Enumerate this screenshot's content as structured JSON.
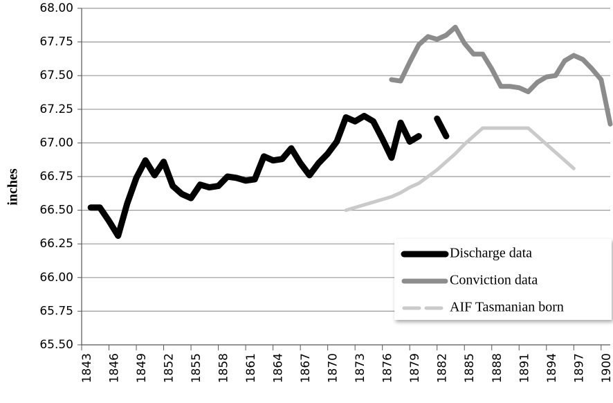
{
  "chart_data": {
    "type": "line",
    "y_label": "inches",
    "x": [
      1843,
      1844,
      1845,
      1846,
      1847,
      1848,
      1849,
      1850,
      1851,
      1852,
      1853,
      1854,
      1855,
      1856,
      1857,
      1858,
      1859,
      1860,
      1861,
      1862,
      1863,
      1864,
      1865,
      1866,
      1867,
      1868,
      1869,
      1870,
      1871,
      1872,
      1873,
      1874,
      1875,
      1876,
      1877,
      1878,
      1879,
      1880,
      1881,
      1882,
      1883,
      1884,
      1885,
      1886,
      1887,
      1888,
      1889,
      1890,
      1891,
      1892,
      1893,
      1894,
      1895,
      1896,
      1897,
      1898,
      1899,
      1900,
      1901
    ],
    "series": [
      {
        "name": "Discharge data",
        "color": "#000000",
        "values": [
          null,
          66.52,
          66.52,
          66.42,
          66.31,
          66.55,
          66.74,
          66.87,
          66.76,
          66.86,
          66.68,
          66.62,
          66.59,
          66.69,
          66.67,
          66.68,
          66.75,
          66.74,
          66.72,
          66.73,
          66.9,
          66.87,
          66.88,
          66.96,
          66.85,
          66.76,
          66.85,
          66.92,
          67.01,
          67.19,
          67.16,
          67.2,
          67.16,
          67.03,
          66.89,
          67.15,
          67.01,
          67.05,
          null,
          67.18,
          67.05,
          null,
          null,
          null,
          null,
          null,
          null,
          null,
          null,
          null,
          null,
          null,
          null,
          null,
          null,
          null,
          null,
          null,
          null
        ]
      },
      {
        "name": "Conviction data",
        "color": "#8c8c8c",
        "values": [
          null,
          null,
          null,
          null,
          null,
          null,
          null,
          null,
          null,
          null,
          null,
          null,
          null,
          null,
          null,
          null,
          null,
          null,
          null,
          null,
          null,
          null,
          null,
          null,
          null,
          null,
          null,
          null,
          null,
          null,
          null,
          null,
          null,
          null,
          67.47,
          67.46,
          67.6,
          67.73,
          67.79,
          67.77,
          67.8,
          67.86,
          67.74,
          67.66,
          67.66,
          67.55,
          67.42,
          67.42,
          67.41,
          67.38,
          67.45,
          67.49,
          67.5,
          67.61,
          67.65,
          67.62,
          67.55,
          67.47,
          67.14
        ]
      },
      {
        "name": "AIF Tasmanian born",
        "color": "#cacaca",
        "values": [
          null,
          null,
          null,
          null,
          null,
          null,
          null,
          null,
          null,
          null,
          null,
          null,
          null,
          null,
          null,
          null,
          null,
          null,
          null,
          null,
          null,
          null,
          null,
          null,
          null,
          null,
          null,
          null,
          null,
          66.5,
          66.52,
          66.54,
          66.56,
          66.58,
          66.6,
          66.63,
          66.67,
          66.7,
          66.75,
          66.8,
          66.86,
          66.92,
          66.99,
          67.05,
          67.11,
          67.11,
          67.11,
          67.11,
          67.11,
          67.11,
          67.05,
          66.99,
          66.93,
          66.87,
          66.81,
          null,
          null,
          null,
          null
        ]
      }
    ],
    "xlim": [
      1843,
      1901
    ],
    "xticks": [
      1843,
      1846,
      1849,
      1852,
      1855,
      1858,
      1861,
      1864,
      1867,
      1870,
      1873,
      1876,
      1879,
      1882,
      1885,
      1888,
      1891,
      1894,
      1897,
      1900
    ],
    "ylim": [
      65.5,
      68
    ],
    "yticks": [
      {
        "value": 65.5,
        "label": "65.50"
      },
      65.75,
      {
        "value": 66,
        "label": "66.00"
      },
      66.25,
      {
        "value": 66.5,
        "label": "66.50"
      },
      66.75,
      {
        "value": 67,
        "label": "67.00"
      },
      67.25,
      {
        "value": 67.5,
        "label": "67.50"
      },
      67.75,
      {
        "value": 68,
        "label": "68.00"
      }
    ],
    "grid": true,
    "legend": "lower right"
  }
}
